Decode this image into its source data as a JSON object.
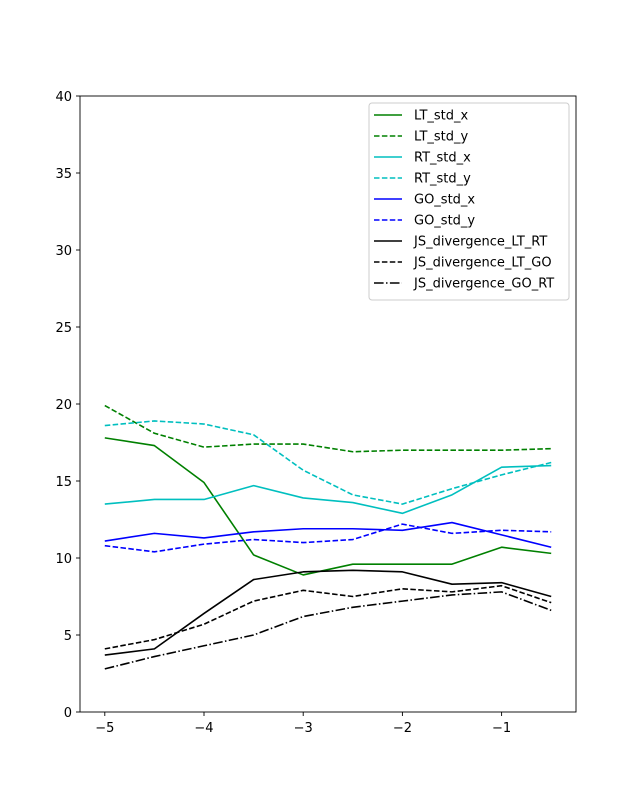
{
  "chart_data": {
    "type": "line",
    "title": "",
    "xlabel": "",
    "ylabel": "",
    "x": [
      -5,
      -4.5,
      -4,
      -3.5,
      -3,
      -2.5,
      -2,
      -1.5,
      -1,
      -0.5
    ],
    "xlim": [
      -5.25,
      -0.25
    ],
    "ylim": [
      0,
      40
    ],
    "xticks": [
      -5,
      -4,
      -3,
      -2,
      -1
    ],
    "xtick_labels": [
      "−5",
      "−4",
      "−3",
      "−2",
      "−1"
    ],
    "yticks": [
      0,
      5,
      10,
      15,
      20,
      25,
      30,
      35,
      40
    ],
    "ytick_labels": [
      "0",
      "5",
      "10",
      "15",
      "20",
      "25",
      "30",
      "35",
      "40"
    ],
    "grid": false,
    "legend_position": "upper right",
    "series": [
      {
        "name": "LT_std_x",
        "color": "#008000",
        "dash": "solid",
        "values": [
          17.8,
          17.3,
          14.9,
          10.2,
          8.9,
          9.6,
          9.6,
          9.6,
          10.7,
          10.3
        ]
      },
      {
        "name": "LT_std_y",
        "color": "#008000",
        "dash": "dashed",
        "values": [
          19.9,
          18.1,
          17.2,
          17.4,
          17.4,
          16.9,
          17.0,
          17.0,
          17.0,
          17.1
        ]
      },
      {
        "name": "RT_std_x",
        "color": "#00bfbf",
        "dash": "solid",
        "values": [
          13.5,
          13.8,
          13.8,
          14.7,
          13.9,
          13.6,
          12.9,
          14.1,
          15.9,
          16.0
        ]
      },
      {
        "name": "RT_std_y",
        "color": "#00bfbf",
        "dash": "dashed",
        "values": [
          18.6,
          18.9,
          18.7,
          18.0,
          15.7,
          14.1,
          13.5,
          14.5,
          15.4,
          16.2
        ]
      },
      {
        "name": "GO_std_x",
        "color": "#0000ff",
        "dash": "solid",
        "values": [
          11.1,
          11.6,
          11.3,
          11.7,
          11.9,
          11.9,
          11.8,
          12.3,
          11.5,
          10.7
        ]
      },
      {
        "name": "GO_std_y",
        "color": "#0000ff",
        "dash": "dashed",
        "values": [
          10.8,
          10.4,
          10.9,
          11.2,
          11.0,
          11.2,
          12.2,
          11.6,
          11.8,
          11.7
        ]
      },
      {
        "name": "JS_divergence_LT_RT",
        "color": "#000000",
        "dash": "solid",
        "values": [
          3.7,
          4.1,
          6.4,
          8.6,
          9.1,
          9.2,
          9.1,
          8.3,
          8.4,
          7.5
        ]
      },
      {
        "name": "JS_divergence_LT_GO",
        "color": "#000000",
        "dash": "dashed",
        "values": [
          4.1,
          4.7,
          5.7,
          7.2,
          7.9,
          7.5,
          8.0,
          7.8,
          8.2,
          7.1
        ]
      },
      {
        "name": "JS_divergence_GO_RT",
        "color": "#000000",
        "dash": "dashdot",
        "values": [
          2.8,
          3.6,
          4.3,
          5.0,
          6.2,
          6.8,
          7.2,
          7.6,
          7.8,
          6.6
        ]
      }
    ]
  }
}
